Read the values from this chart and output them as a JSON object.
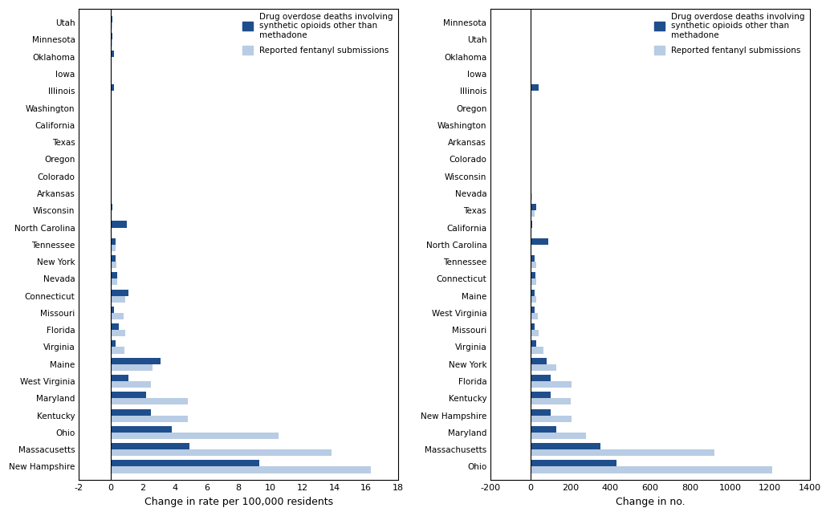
{
  "left_states": [
    "New Hampshire",
    "Massacusetts",
    "Ohio",
    "Kentucky",
    "Maryland",
    "West Virginia",
    "Maine",
    "Virginia",
    "Florida",
    "Missouri",
    "Connecticut",
    "Nevada",
    "New York",
    "Tennessee",
    "North Carolina",
    "Wisconsin",
    "Arkansas",
    "Colorado",
    "Oregon",
    "Texas",
    "California",
    "Washington",
    "Illinois",
    "Iowa",
    "Oklahoma",
    "Minnesota",
    "Utah"
  ],
  "left_deaths": [
    9.3,
    4.9,
    3.8,
    2.5,
    2.2,
    1.1,
    3.1,
    0.3,
    0.5,
    0.2,
    1.1,
    0.4,
    0.3,
    0.3,
    1.0,
    0.1,
    0.05,
    0.05,
    0.05,
    0.0,
    0.0,
    0.0,
    0.2,
    0.0,
    0.2,
    0.1,
    0.1
  ],
  "left_fentanyl": [
    16.3,
    13.8,
    10.5,
    4.8,
    4.8,
    2.5,
    2.6,
    0.85,
    0.9,
    0.8,
    0.9,
    0.4,
    0.35,
    0.3,
    0.0,
    0.05,
    0.0,
    0.05,
    0.05,
    0.0,
    0.0,
    0.0,
    0.0,
    0.0,
    0.0,
    0.1,
    0.1
  ],
  "right_states": [
    "Ohio",
    "Massachusetts",
    "Maryland",
    "New Hampshire",
    "Kentucky",
    "Florida",
    "New York",
    "Virginia",
    "Missouri",
    "West Virginia",
    "Maine",
    "Connecticut",
    "Tennessee",
    "North Carolina",
    "California",
    "Texas",
    "Nevada",
    "Wisconsin",
    "Colorado",
    "Arkansas",
    "Washington",
    "Oregon",
    "Illinois",
    "Iowa",
    "Oklahoma",
    "Utah",
    "Minnesota"
  ],
  "right_deaths": [
    430,
    350,
    130,
    100,
    100,
    100,
    80,
    30,
    20,
    20,
    20,
    25,
    20,
    90,
    10,
    30,
    0,
    2,
    5,
    0,
    0,
    0,
    40,
    0,
    2,
    3,
    3
  ],
  "right_fentanyl": [
    1210,
    920,
    280,
    205,
    200,
    205,
    130,
    65,
    40,
    35,
    30,
    30,
    30,
    0,
    5,
    20,
    10,
    5,
    5,
    0,
    0,
    0,
    0,
    0,
    0,
    5,
    3
  ],
  "death_color": "#1f4e8c",
  "fentanyl_color": "#b8cce4",
  "left_xlim": [
    -2,
    18
  ],
  "left_xticks": [
    -2,
    0,
    2,
    4,
    6,
    8,
    10,
    12,
    14,
    16,
    18
  ],
  "right_xlim": [
    -200,
    1400
  ],
  "right_xticks": [
    -200,
    0,
    200,
    400,
    600,
    800,
    1000,
    1200,
    1400
  ],
  "left_xlabel": "Change in rate per 100,000 residents",
  "right_xlabel": "Change in no.",
  "legend_label1": "Drug overdose deaths involving\nsynthetic opioids other than\nmethadone",
  "legend_label2": "Reported fentanyl submissions"
}
